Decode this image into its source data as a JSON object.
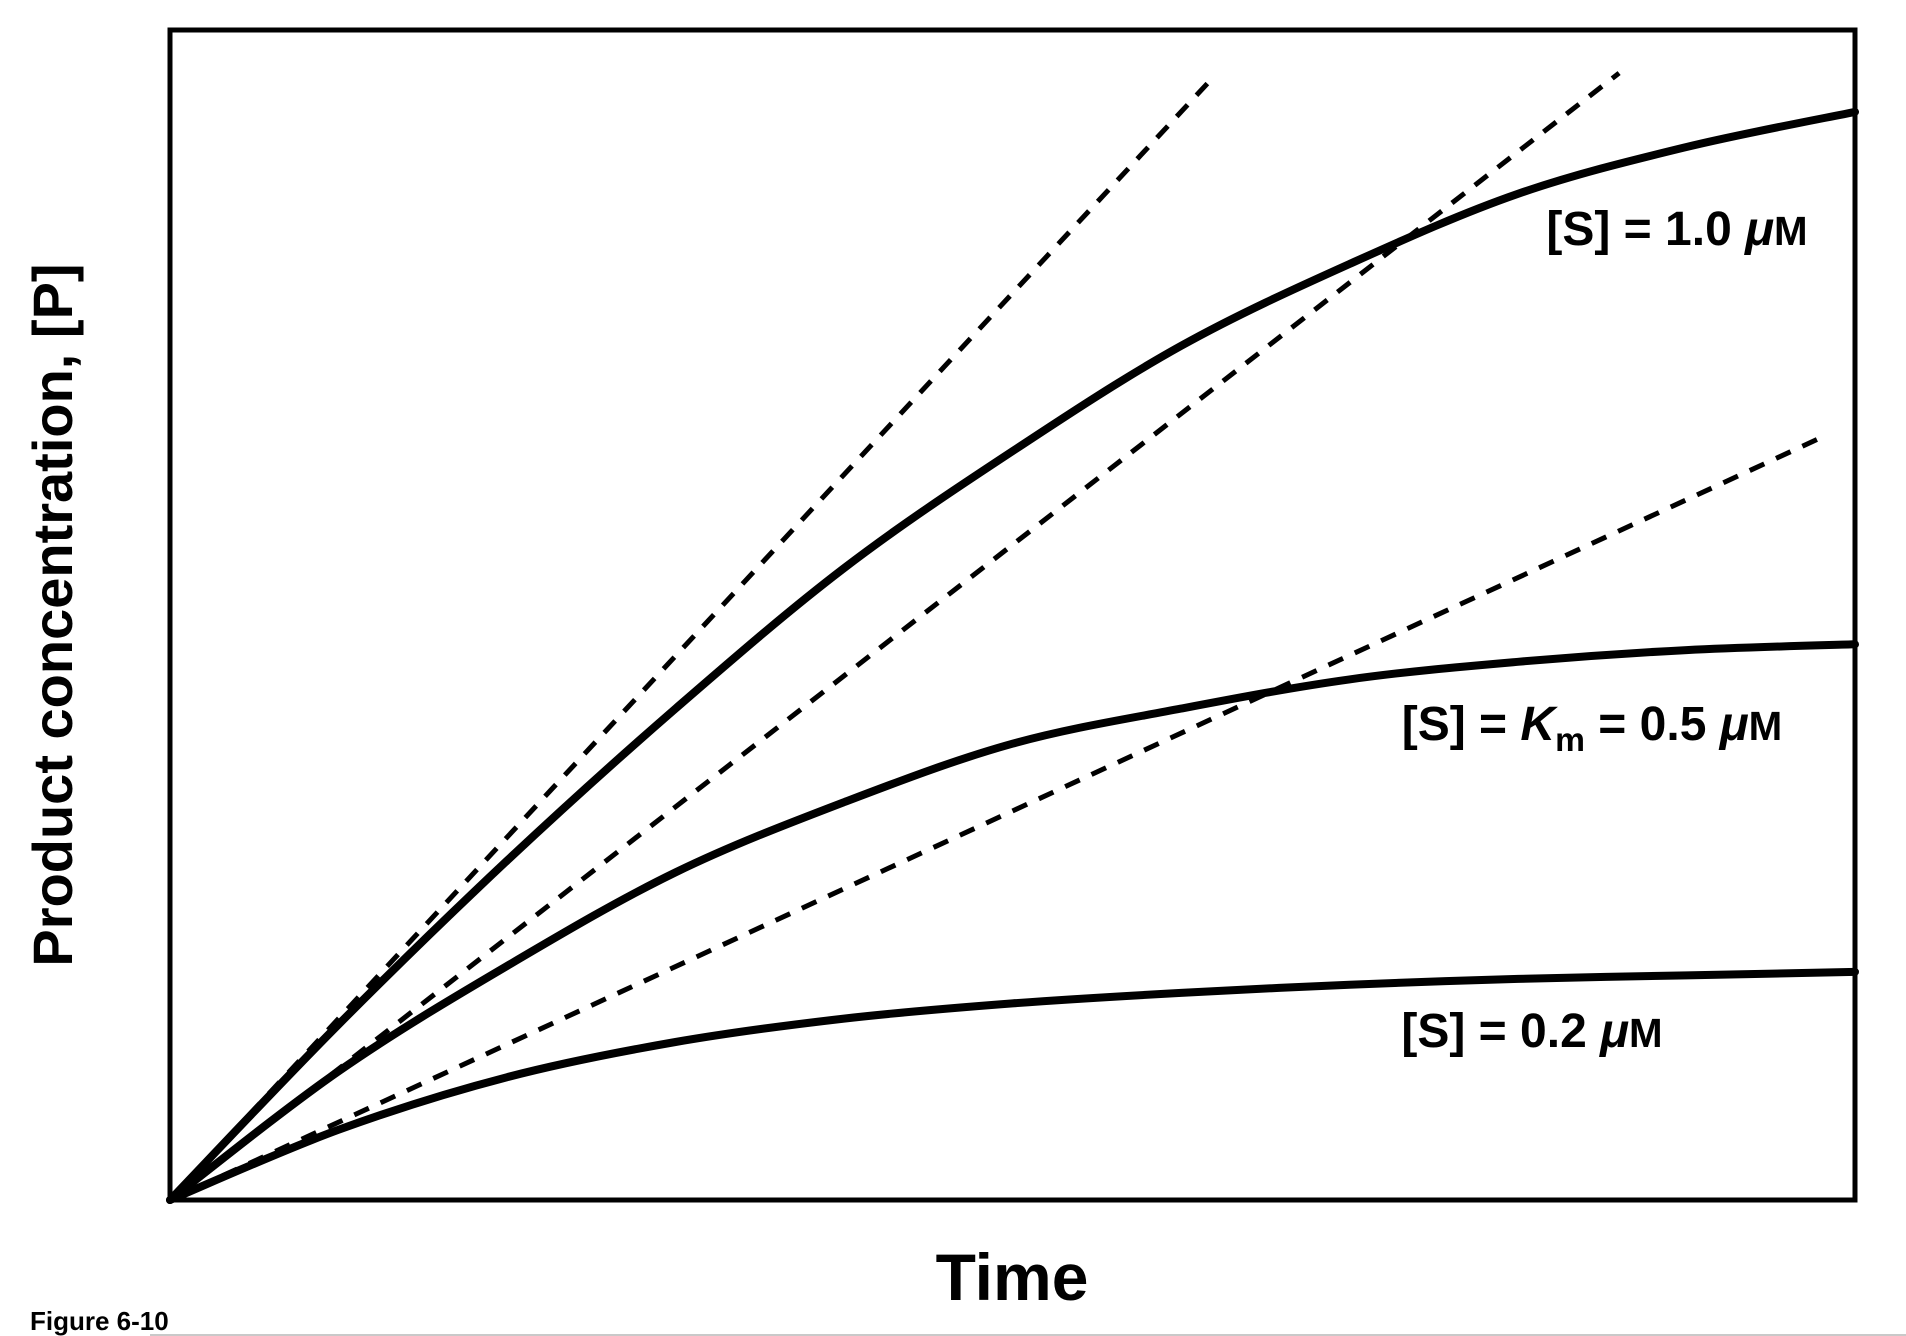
{
  "figure": {
    "caption": "Figure 6-10"
  },
  "chart_data": {
    "type": "line",
    "xlabel": "Time",
    "ylabel": "Product concentration, [P]",
    "x_range": [
      0,
      1
    ],
    "y_range": [
      0,
      1
    ],
    "grid": false,
    "legend": "inline-labels",
    "axes_ticks": "none (qualitative axes, arbitrary units)",
    "x": [
      0,
      0.1,
      0.2,
      0.3,
      0.4,
      0.5,
      0.6,
      0.7,
      0.8,
      0.9,
      1.0
    ],
    "series": [
      {
        "name": "substrate-1.0uM",
        "label": "[S] = 1.0 μM",
        "label_parts": [
          {
            "t": "[S] = 1.0 "
          },
          {
            "t": "μ",
            "i": true
          },
          {
            "t": "M",
            "small": true
          }
        ],
        "line_style": "solid",
        "y": [
          0,
          0.15,
          0.29,
          0.42,
          0.54,
          0.64,
          0.73,
          0.8,
          0.86,
          0.9,
          0.93
        ]
      },
      {
        "name": "substrate-0.5uM-equals-Km",
        "label": "[S] = Km = 0.5 μM",
        "label_parts": [
          {
            "t": "[S] = "
          },
          {
            "t": "K",
            "i": true
          },
          {
            "t": "m",
            "sub": true
          },
          {
            "t": " = 0.5 "
          },
          {
            "t": "μ",
            "i": true
          },
          {
            "t": "M",
            "small": true
          }
        ],
        "line_style": "solid",
        "y": [
          0,
          0.11,
          0.2,
          0.28,
          0.34,
          0.39,
          0.42,
          0.445,
          0.46,
          0.47,
          0.475
        ]
      },
      {
        "name": "substrate-0.2uM",
        "label": "[S] = 0.2 μM",
        "label_parts": [
          {
            "t": "[S] = 0.2 "
          },
          {
            "t": "μ",
            "i": true
          },
          {
            "t": "M",
            "small": true
          }
        ],
        "line_style": "solid",
        "y": [
          0,
          0.06,
          0.105,
          0.135,
          0.155,
          0.168,
          0.177,
          0.184,
          0.189,
          0.192,
          0.195
        ]
      }
    ],
    "initial_rate_tangents": [
      {
        "name": "initial-rate-tangent-1.0uM",
        "line_style": "dashed",
        "slope": 1.55,
        "t_start": 0,
        "t_end": 0.62
      },
      {
        "name": "initial-rate-tangent-0.5uM",
        "line_style": "dashed",
        "slope": 1.12,
        "t_start": 0,
        "t_end": 0.86
      },
      {
        "name": "initial-rate-tangent-0.2uM",
        "line_style": "dashed",
        "slope": 0.665,
        "t_start": 0,
        "t_end": 0.98
      }
    ]
  }
}
